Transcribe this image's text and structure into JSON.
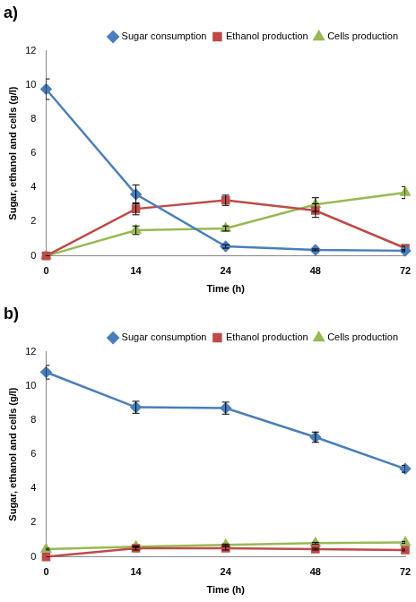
{
  "chart_data": [
    {
      "type": "line",
      "title": "a)",
      "x_label": "Time (h)",
      "y_label": "Sugar, ethanol and cells (g/l)",
      "categories": [
        "0",
        "14",
        "24",
        "48",
        "72"
      ],
      "series": [
        {
          "name": "Sugar consumption",
          "color": "#4a7ebb",
          "marker": "diamond",
          "values": [
            9.75,
            3.6,
            0.55,
            0.35,
            0.3
          ],
          "errors": [
            0.6,
            0.55,
            0.1,
            0.05,
            0.05
          ]
        },
        {
          "name": "Ethanol production",
          "color": "#be4b48",
          "marker": "square",
          "values": [
            0,
            2.75,
            3.25,
            2.65,
            0.45
          ],
          "errors": [
            0,
            0.35,
            0.3,
            0.4,
            0.1
          ]
        },
        {
          "name": "Cells production",
          "color": "#98b954",
          "marker": "triangle",
          "values": [
            0,
            1.5,
            1.6,
            3.0,
            3.7
          ],
          "errors": [
            0,
            0.25,
            0.15,
            0.4,
            0.35
          ]
        }
      ],
      "ylim": [
        0,
        12
      ],
      "yticks": [
        0,
        2,
        4,
        6,
        8,
        10,
        12
      ],
      "grid": false,
      "legend": "upper right"
    },
    {
      "type": "line",
      "title": "b)",
      "x_label": "Time (h)",
      "y_label": "Sugar, ethanol and cells (g/l)",
      "categories": [
        "0",
        "14",
        "24",
        "48",
        "72"
      ],
      "series": [
        {
          "name": "Sugar consumption",
          "color": "#4a7ebb",
          "marker": "diamond",
          "values": [
            10.8,
            8.75,
            8.7,
            7.0,
            5.15
          ],
          "errors": [
            0.4,
            0.35,
            0.35,
            0.3,
            0.2
          ]
        },
        {
          "name": "Ethanol production",
          "color": "#be4b48",
          "marker": "square",
          "values": [
            0,
            0.5,
            0.5,
            0.45,
            0.4
          ],
          "errors": [
            0,
            0.1,
            0.1,
            0.05,
            0.05
          ]
        },
        {
          "name": "Cells production",
          "color": "#98b954",
          "marker": "triangle",
          "values": [
            0.45,
            0.6,
            0.7,
            0.8,
            0.85
          ],
          "errors": [
            0.05,
            0.05,
            0.05,
            0.05,
            0.05
          ]
        }
      ],
      "ylim": [
        0,
        12
      ],
      "yticks": [
        0,
        2,
        4,
        6,
        8,
        10,
        12
      ],
      "grid": false,
      "legend": "upper right"
    }
  ]
}
